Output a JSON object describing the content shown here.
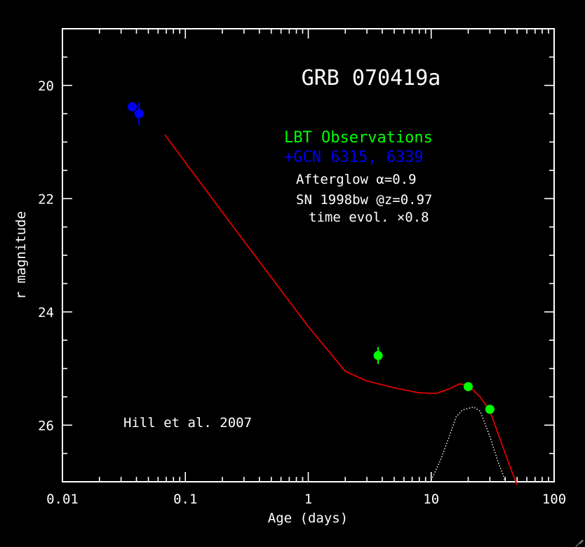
{
  "chart_data": {
    "type": "scatter",
    "title": "GRB 070419a",
    "xlabel": "Age (days)",
    "ylabel": "r magnitude",
    "xscale": "log",
    "xlim": [
      0.01,
      100
    ],
    "ylim": [
      27,
      19
    ],
    "x_tick_labels": [
      "0.01",
      "0.1",
      "1",
      "10",
      "100"
    ],
    "y_tick_labels": [
      "20",
      "22",
      "24",
      "26"
    ],
    "series": [
      {
        "name": "LBT Observations",
        "color": "#00ff00",
        "points": [
          {
            "x": 3.7,
            "y": 24.77,
            "yerr": 0.15
          },
          {
            "x": 20.0,
            "y": 25.32,
            "yerr": 0.05
          },
          {
            "x": 30.0,
            "y": 25.72,
            "yerr": 0.05
          }
        ]
      },
      {
        "name": "+GCN 6315, 6339",
        "color": "#0000ff",
        "points": [
          {
            "x": 0.037,
            "y": 20.38,
            "yerr": 0.05
          },
          {
            "x": 0.042,
            "y": 20.5,
            "yerr": 0.2
          }
        ]
      }
    ],
    "model_curve": {
      "color": "#dd0000",
      "points": [
        [
          0.068,
          20.87
        ],
        [
          0.1,
          21.36
        ],
        [
          0.2,
          22.24
        ],
        [
          0.5,
          23.39
        ],
        [
          1,
          24.26
        ],
        [
          2,
          25.05
        ],
        [
          3,
          25.22
        ],
        [
          5,
          25.34
        ],
        [
          8,
          25.43
        ],
        [
          11,
          25.44
        ],
        [
          14,
          25.36
        ],
        [
          17,
          25.27
        ],
        [
          20,
          25.3
        ],
        [
          25,
          25.5
        ],
        [
          30,
          25.75
        ],
        [
          35,
          26.15
        ],
        [
          40,
          26.5
        ],
        [
          45,
          26.8
        ],
        [
          50,
          27.05
        ]
      ]
    },
    "sn_curve": {
      "color": "#ffffff",
      "points": [
        [
          10,
          26.97
        ],
        [
          12,
          26.6
        ],
        [
          14,
          26.2
        ],
        [
          16,
          25.85
        ],
        [
          18,
          25.73
        ],
        [
          22,
          25.68
        ],
        [
          25,
          25.75
        ],
        [
          30,
          26.2
        ],
        [
          35,
          26.65
        ],
        [
          38,
          26.85
        ],
        [
          40,
          27.0
        ]
      ]
    },
    "annotations": {
      "legend_lbt": "LBT Observations",
      "legend_gcn": "+GCN 6315, 6339",
      "line1": "Afterglow α=0.9",
      "line2": "SN 1998bw @z=0.97",
      "line3": "time evol. ×0.8",
      "credit": "Hill et al. 2007"
    }
  }
}
